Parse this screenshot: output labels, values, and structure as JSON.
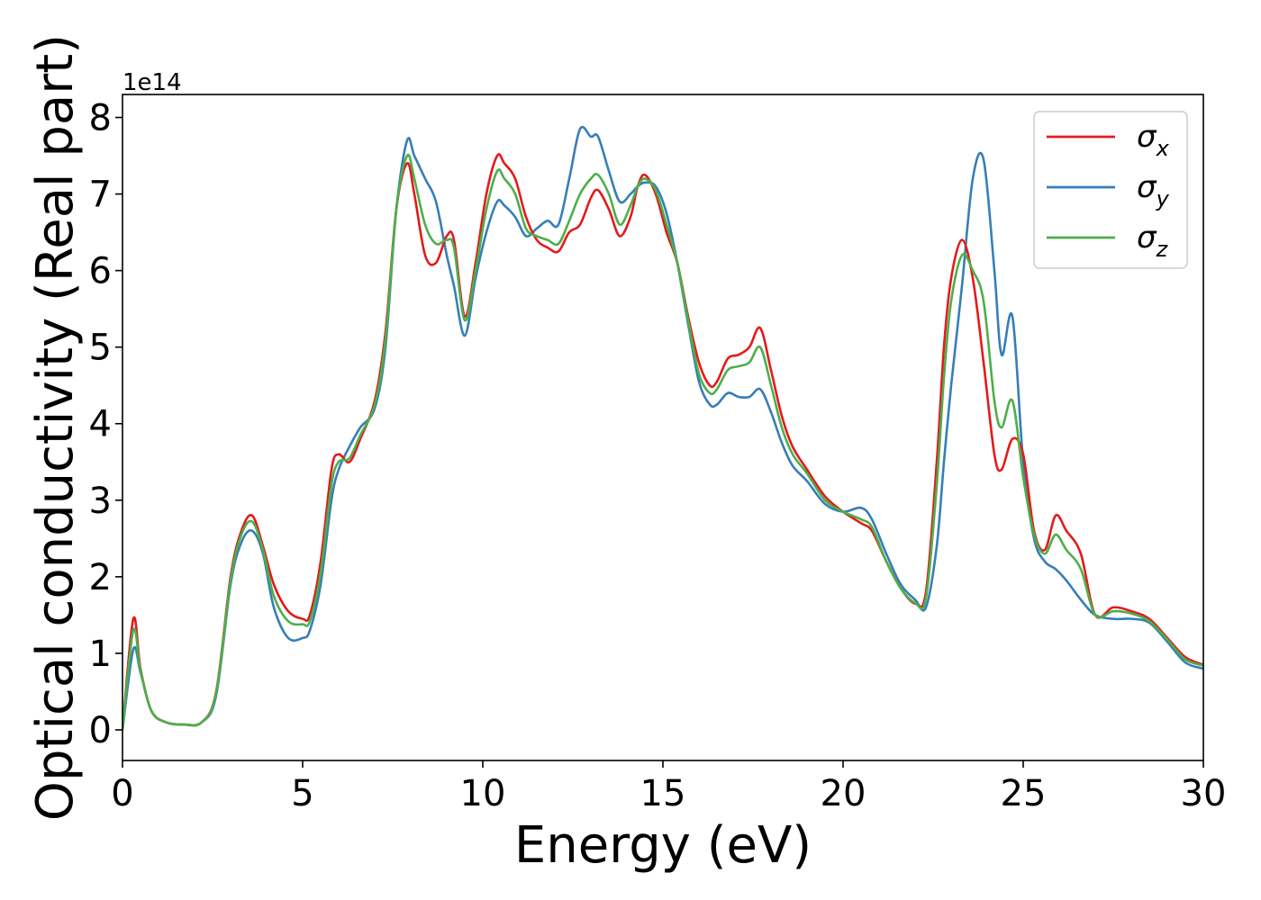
{
  "chart_data": {
    "type": "line",
    "title": "",
    "xlabel": "Energy (eV)",
    "ylabel": "Optical conductivity (Real part)",
    "y_offset_label": "1e14",
    "xlim": [
      0,
      30
    ],
    "ylim": [
      -0.4,
      8.3
    ],
    "xticks": [
      "0",
      "5",
      "10",
      "15",
      "20",
      "25",
      "30"
    ],
    "yticks": [
      "0",
      "1",
      "2",
      "3",
      "4",
      "5",
      "6",
      "7",
      "8"
    ],
    "grid": false,
    "legend_position": "top-right",
    "series": [
      {
        "name": "σx",
        "symbol": "σ",
        "subscript": "x",
        "color": "#e41a1c",
        "x": [
          0,
          0.3,
          0.5,
          0.8,
          1.2,
          1.7,
          2.2,
          2.6,
          3.0,
          3.3,
          3.6,
          3.9,
          4.2,
          4.6,
          5.0,
          5.2,
          5.5,
          5.8,
          6.0,
          6.3,
          6.6,
          7.0,
          7.3,
          7.6,
          7.9,
          8.1,
          8.4,
          8.7,
          9.0,
          9.2,
          9.5,
          9.8,
          10.1,
          10.4,
          10.6,
          10.9,
          11.2,
          11.5,
          11.8,
          12.1,
          12.4,
          12.7,
          13.0,
          13.2,
          13.5,
          13.8,
          14.1,
          14.3,
          14.5,
          14.8,
          15.1,
          15.4,
          15.7,
          16.0,
          16.3,
          16.5,
          16.8,
          17.1,
          17.4,
          17.7,
          18.0,
          18.3,
          18.6,
          19.0,
          19.5,
          20.0,
          20.5,
          20.8,
          21.2,
          21.6,
          22.0,
          22.3,
          22.6,
          22.8,
          23.0,
          23.3,
          23.6,
          23.9,
          24.2,
          24.4,
          24.7,
          25.0,
          25.3,
          25.6,
          25.9,
          26.2,
          26.6,
          27.0,
          27.5,
          28.0,
          28.5,
          29.0,
          29.5,
          30.0
        ],
        "y": [
          0.0,
          1.45,
          0.8,
          0.25,
          0.1,
          0.07,
          0.1,
          0.5,
          2.0,
          2.6,
          2.8,
          2.4,
          1.9,
          1.55,
          1.45,
          1.5,
          2.2,
          3.4,
          3.6,
          3.5,
          3.8,
          4.3,
          5.2,
          6.8,
          7.4,
          7.0,
          6.2,
          6.1,
          6.45,
          6.4,
          5.4,
          6.1,
          7.0,
          7.5,
          7.4,
          7.2,
          6.7,
          6.4,
          6.3,
          6.25,
          6.5,
          6.6,
          6.95,
          7.05,
          6.8,
          6.45,
          6.7,
          7.1,
          7.25,
          7.0,
          6.5,
          6.1,
          5.4,
          4.8,
          4.5,
          4.55,
          4.85,
          4.9,
          5.0,
          5.25,
          4.7,
          4.1,
          3.7,
          3.4,
          3.05,
          2.85,
          2.7,
          2.6,
          2.2,
          1.85,
          1.65,
          1.8,
          3.5,
          5.0,
          5.9,
          6.4,
          5.9,
          4.8,
          3.6,
          3.4,
          3.8,
          3.6,
          2.6,
          2.35,
          2.8,
          2.6,
          2.3,
          1.5,
          1.6,
          1.55,
          1.45,
          1.2,
          0.95,
          0.85
        ]
      },
      {
        "name": "σy",
        "symbol": "σ",
        "subscript": "y",
        "color": "#377eb8",
        "x": [
          0,
          0.3,
          0.5,
          0.8,
          1.2,
          1.7,
          2.2,
          2.6,
          3.0,
          3.3,
          3.6,
          3.9,
          4.2,
          4.6,
          5.0,
          5.2,
          5.5,
          5.8,
          6.0,
          6.3,
          6.6,
          7.0,
          7.3,
          7.6,
          7.9,
          8.1,
          8.4,
          8.7,
          9.0,
          9.2,
          9.5,
          9.8,
          10.1,
          10.4,
          10.6,
          10.9,
          11.2,
          11.5,
          11.8,
          12.1,
          12.4,
          12.7,
          13.0,
          13.2,
          13.5,
          13.8,
          14.1,
          14.3,
          14.5,
          14.8,
          15.1,
          15.4,
          15.7,
          16.0,
          16.3,
          16.5,
          16.8,
          17.1,
          17.4,
          17.7,
          18.0,
          18.3,
          18.6,
          19.0,
          19.5,
          20.0,
          20.5,
          20.8,
          21.2,
          21.6,
          22.0,
          22.3,
          22.6,
          22.8,
          23.0,
          23.3,
          23.6,
          23.9,
          24.2,
          24.4,
          24.7,
          25.0,
          25.3,
          25.6,
          25.9,
          26.2,
          26.6,
          27.0,
          27.5,
          28.0,
          28.5,
          29.0,
          29.5,
          30.0
        ],
        "y": [
          0.0,
          1.05,
          0.75,
          0.25,
          0.1,
          0.07,
          0.1,
          0.45,
          1.9,
          2.45,
          2.6,
          2.3,
          1.6,
          1.2,
          1.2,
          1.3,
          1.9,
          3.0,
          3.4,
          3.7,
          3.95,
          4.2,
          5.0,
          6.8,
          7.7,
          7.5,
          7.2,
          6.9,
          6.2,
          5.8,
          5.15,
          5.9,
          6.5,
          6.9,
          6.85,
          6.7,
          6.45,
          6.55,
          6.65,
          6.6,
          7.2,
          7.85,
          7.75,
          7.75,
          7.3,
          6.9,
          7.0,
          7.1,
          7.15,
          7.1,
          6.75,
          6.1,
          5.3,
          4.55,
          4.25,
          4.25,
          4.4,
          4.35,
          4.35,
          4.45,
          4.15,
          3.75,
          3.45,
          3.25,
          2.95,
          2.85,
          2.9,
          2.75,
          2.3,
          1.9,
          1.7,
          1.6,
          2.4,
          3.5,
          4.5,
          5.8,
          7.2,
          7.45,
          6.0,
          4.9,
          5.4,
          3.5,
          2.5,
          2.2,
          2.1,
          1.95,
          1.7,
          1.5,
          1.45,
          1.45,
          1.4,
          1.15,
          0.88,
          0.8
        ]
      },
      {
        "name": "σz",
        "symbol": "σ",
        "subscript": "z",
        "color": "#4daf4a",
        "x": [
          0,
          0.3,
          0.5,
          0.8,
          1.2,
          1.7,
          2.2,
          2.6,
          3.0,
          3.3,
          3.6,
          3.9,
          4.2,
          4.6,
          5.0,
          5.2,
          5.5,
          5.8,
          6.0,
          6.3,
          6.6,
          7.0,
          7.3,
          7.6,
          7.9,
          8.1,
          8.4,
          8.7,
          9.0,
          9.2,
          9.5,
          9.8,
          10.1,
          10.4,
          10.6,
          10.9,
          11.2,
          11.5,
          11.8,
          12.1,
          12.4,
          12.7,
          13.0,
          13.2,
          13.5,
          13.8,
          14.1,
          14.3,
          14.5,
          14.8,
          15.1,
          15.4,
          15.7,
          16.0,
          16.3,
          16.5,
          16.8,
          17.1,
          17.4,
          17.7,
          18.0,
          18.3,
          18.6,
          19.0,
          19.5,
          20.0,
          20.5,
          20.8,
          21.2,
          21.6,
          22.0,
          22.3,
          22.6,
          22.8,
          23.0,
          23.3,
          23.6,
          23.9,
          24.2,
          24.4,
          24.7,
          25.0,
          25.3,
          25.6,
          25.9,
          26.2,
          26.6,
          27.0,
          27.5,
          28.0,
          28.5,
          29.0,
          29.5,
          30.0
        ],
        "y": [
          0.0,
          1.3,
          0.78,
          0.25,
          0.1,
          0.07,
          0.1,
          0.48,
          1.95,
          2.55,
          2.72,
          2.35,
          1.75,
          1.42,
          1.38,
          1.42,
          2.05,
          3.2,
          3.5,
          3.55,
          3.85,
          4.25,
          5.1,
          6.8,
          7.5,
          7.2,
          6.6,
          6.35,
          6.4,
          6.3,
          5.35,
          6.0,
          6.8,
          7.3,
          7.2,
          7.0,
          6.55,
          6.45,
          6.4,
          6.35,
          6.65,
          7.0,
          7.2,
          7.25,
          7.0,
          6.6,
          6.85,
          7.1,
          7.2,
          7.05,
          6.6,
          6.1,
          5.35,
          4.65,
          4.4,
          4.45,
          4.7,
          4.75,
          4.8,
          5.0,
          4.5,
          3.95,
          3.6,
          3.35,
          3.0,
          2.85,
          2.75,
          2.65,
          2.2,
          1.85,
          1.66,
          1.72,
          3.2,
          4.6,
          5.6,
          6.2,
          6.0,
          5.6,
          4.3,
          3.95,
          4.3,
          3.3,
          2.55,
          2.3,
          2.55,
          2.35,
          2.1,
          1.5,
          1.55,
          1.52,
          1.42,
          1.18,
          0.92,
          0.84
        ]
      }
    ]
  }
}
